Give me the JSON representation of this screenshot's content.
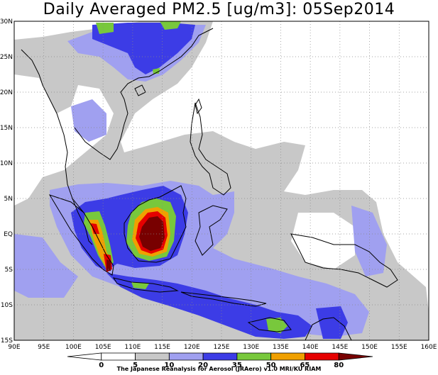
{
  "title": "Daily Averaged PM2.5 [ug/m3]: 05Sep2014",
  "map": {
    "lat_ticks": [
      "30N",
      "25N",
      "20N",
      "15N",
      "10N",
      "5N",
      "EQ",
      "5S",
      "10S",
      "15S"
    ],
    "lon_ticks": [
      "90E",
      "95E",
      "100E",
      "105E",
      "110E",
      "115E",
      "120E",
      "125E",
      "130E",
      "135E",
      "140E",
      "145E",
      "150E",
      "155E",
      "160E"
    ],
    "lon_range": [
      90,
      160
    ],
    "lat_range": [
      -15,
      30
    ],
    "grid": "dotted"
  },
  "colorbar": {
    "levels": [
      "0",
      "5",
      "10",
      "20",
      "35",
      "50",
      "65",
      "80"
    ],
    "colors": [
      "#ffffff",
      "#ffffff",
      "#c8c8c8",
      "#a0a0f0",
      "#3c3ce6",
      "#78c83c",
      "#f0a000",
      "#e60000",
      "#780000"
    ]
  },
  "credit": "The Japanese Reanalysis for Aerosol (JRAero) v1.0 MRI/KU RIAM",
  "colors": {
    "gray": "#c8c8c8",
    "lightblue": "#a0a0f0",
    "blue": "#3c3ce6",
    "green": "#78c83c",
    "orange": "#f0a000",
    "red": "#e60000",
    "darkred": "#780000"
  }
}
